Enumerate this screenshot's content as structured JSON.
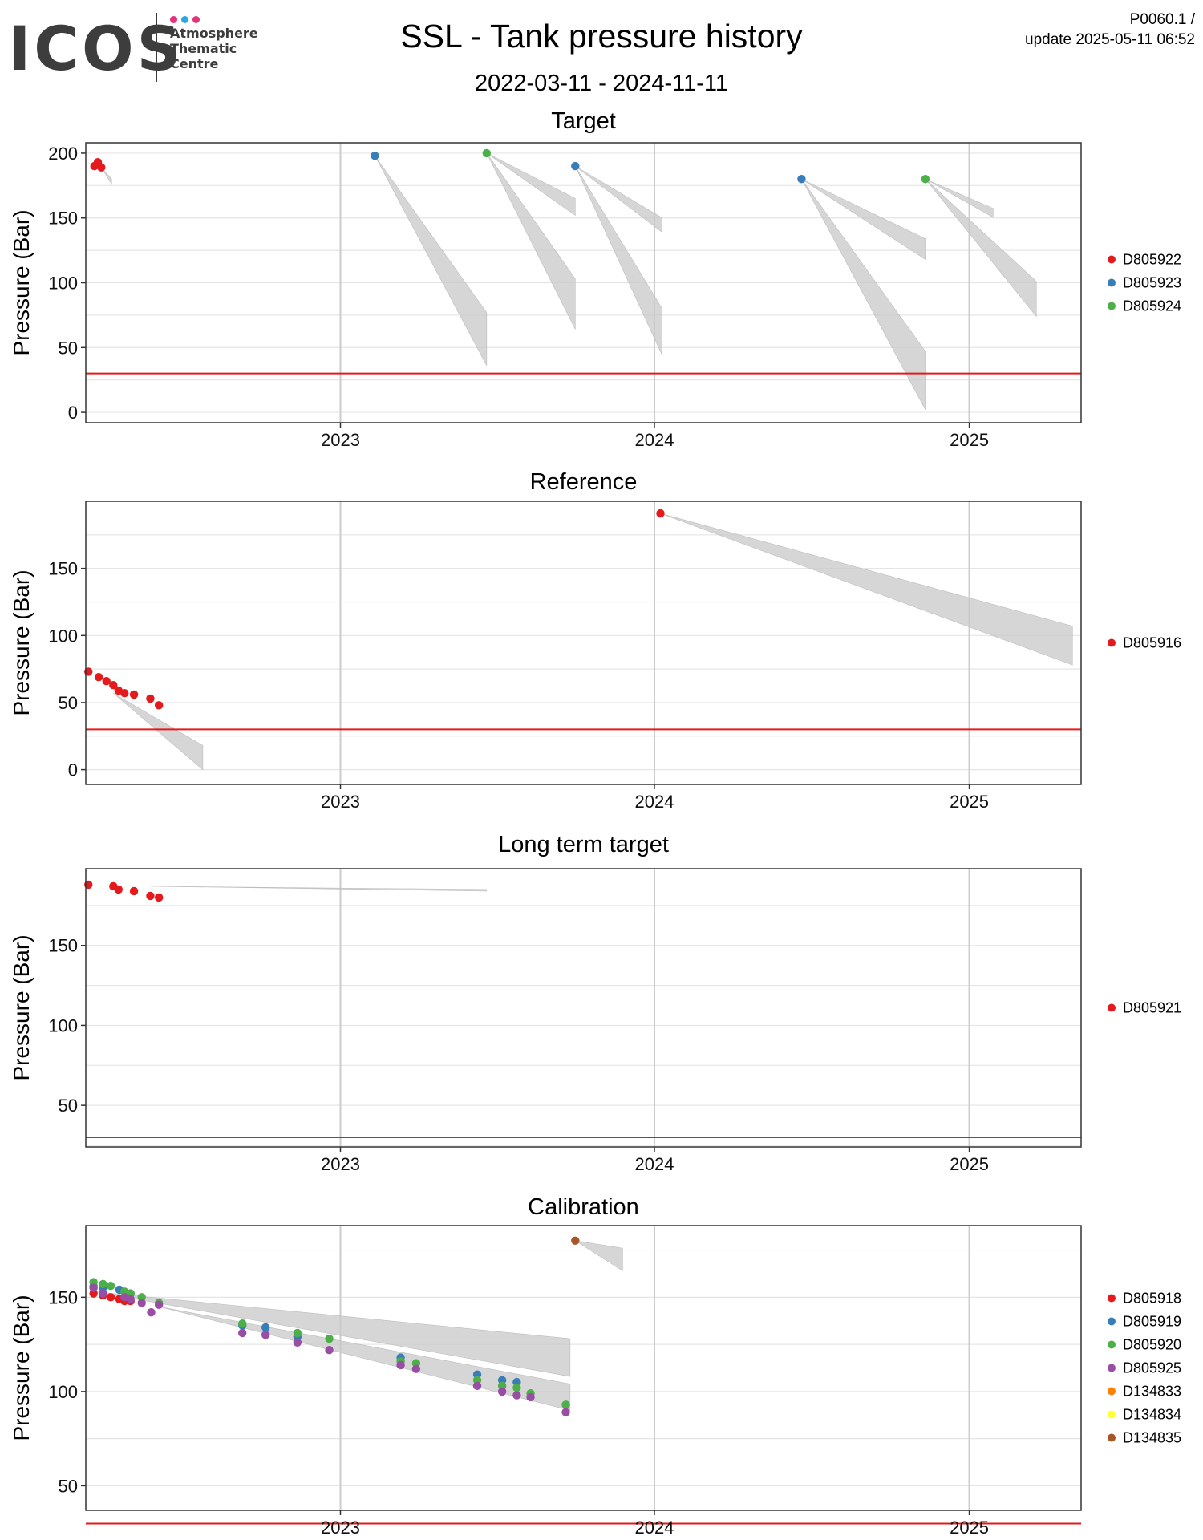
{
  "header": {
    "logo_text": "ICOS",
    "logo_sub_line1": "Atmosphere",
    "logo_sub_line2": "Thematic",
    "logo_sub_line3": "Centre",
    "logo_dot_colors": [
      "#e0357a",
      "#2aa8e0",
      "#e0357a"
    ],
    "title": "SSL - Tank pressure history",
    "date_range": "2022-03-11 - 2024-11-11",
    "doc_id": "P0060.1 /",
    "update": "update  2025-05-11 06:52"
  },
  "colors": {
    "threshold": "#e31a1c",
    "grid": "#e5e5e5",
    "grid_year": "#cccccc",
    "projection_fill": "#c8c8c8"
  },
  "chart_data": [
    {
      "type": "scatter",
      "title": "Target",
      "ylabel": "Pressure (Bar)",
      "xlabel": "",
      "xlim": [
        "2022-03-11",
        "2025-05-11"
      ],
      "ylim": [
        -8,
        208
      ],
      "y_ticks": [
        0,
        50,
        100,
        150,
        200
      ],
      "x_ticks": [
        "2023",
        "2024",
        "2025"
      ],
      "threshold": 30,
      "grid": true,
      "legend_position": "right",
      "series": [
        {
          "name": "D805922",
          "color": "#e41a1c",
          "points": [
            [
              "2022-03-21",
              190
            ],
            [
              "2022-03-25",
              193
            ],
            [
              "2022-03-29",
              189
            ]
          ]
        },
        {
          "name": "D805923",
          "color": "#377eb8",
          "points": [
            [
              "2023-02-10",
              198
            ],
            [
              "2023-10-01",
              190
            ],
            [
              "2024-06-20",
              180
            ]
          ]
        },
        {
          "name": "D805924",
          "color": "#4daf4a",
          "points": [
            [
              "2023-06-20",
              200
            ],
            [
              "2024-11-11",
              180
            ]
          ]
        }
      ],
      "projections": [
        {
          "from": [
            "2022-03-29",
            189
          ],
          "to": "2022-04-10",
          "lo": 176,
          "hi": 180
        },
        {
          "from": [
            "2023-02-10",
            198
          ],
          "to": "2023-06-20",
          "lo": 36,
          "hi": 77
        },
        {
          "from": [
            "2023-06-20",
            200
          ],
          "to": "2023-10-01",
          "lo": 64,
          "hi": 103
        },
        {
          "from": [
            "2023-06-20",
            200
          ],
          "to": "2023-10-01",
          "lo": 152,
          "hi": 165
        },
        {
          "from": [
            "2023-10-01",
            190
          ],
          "to": "2024-01-10",
          "lo": 44,
          "hi": 80
        },
        {
          "from": [
            "2023-10-01",
            190
          ],
          "to": "2024-01-10",
          "lo": 139,
          "hi": 150
        },
        {
          "from": [
            "2024-06-20",
            180
          ],
          "to": "2024-11-11",
          "lo": 2,
          "hi": 47
        },
        {
          "from": [
            "2024-06-20",
            180
          ],
          "to": "2024-11-11",
          "lo": 118,
          "hi": 134
        },
        {
          "from": [
            "2024-11-11",
            180
          ],
          "to": "2025-03-20",
          "lo": 74,
          "hi": 101
        },
        {
          "from": [
            "2024-11-11",
            180
          ],
          "to": "2025-01-30",
          "lo": 150,
          "hi": 157
        }
      ]
    },
    {
      "type": "scatter",
      "title": "Reference",
      "ylabel": "Pressure (Bar)",
      "xlabel": "",
      "xlim": [
        "2022-03-11",
        "2025-05-11"
      ],
      "ylim": [
        -11,
        200
      ],
      "y_ticks": [
        0,
        50,
        100,
        150
      ],
      "x_ticks": [
        "2023",
        "2024",
        "2025"
      ],
      "threshold": 30,
      "grid": true,
      "legend_position": "right",
      "series": [
        {
          "name": "D805916",
          "color": "#e41a1c",
          "points": [
            [
              "2022-03-14",
              73
            ],
            [
              "2022-03-26",
              69
            ],
            [
              "2022-04-04",
              66
            ],
            [
              "2022-04-12",
              63
            ],
            [
              "2022-04-18",
              59
            ],
            [
              "2022-04-25",
              57
            ],
            [
              "2022-05-06",
              56
            ],
            [
              "2022-05-25",
              53
            ],
            [
              "2022-06-04",
              48
            ],
            [
              "2024-01-08",
              191
            ]
          ]
        }
      ],
      "projections": [
        {
          "from": [
            "2022-04-12",
            57
          ],
          "to": "2022-07-25",
          "lo": 0,
          "hi": 18
        },
        {
          "from": [
            "2024-01-08",
            191
          ],
          "to": "2025-05-01",
          "lo": 78,
          "hi": 107
        }
      ]
    },
    {
      "type": "scatter",
      "title": "Long term target",
      "ylabel": "Pressure (Bar)",
      "xlabel": "",
      "xlim": [
        "2022-03-11",
        "2025-05-11"
      ],
      "ylim": [
        24,
        198
      ],
      "y_ticks": [
        50,
        100,
        150
      ],
      "x_ticks": [
        "2023",
        "2024",
        "2025"
      ],
      "threshold": 30,
      "grid": true,
      "legend_position": "right",
      "series": [
        {
          "name": "D805921",
          "color": "#e41a1c",
          "points": [
            [
              "2022-03-14",
              188
            ],
            [
              "2022-04-12",
              187
            ],
            [
              "2022-04-18",
              185
            ],
            [
              "2022-05-06",
              184
            ],
            [
              "2022-05-25",
              181
            ],
            [
              "2022-06-04",
              180
            ]
          ]
        }
      ],
      "projections": [
        {
          "from": [
            "2022-05-25",
            187
          ],
          "to": "2023-06-20",
          "lo": 184,
          "hi": 185
        }
      ]
    },
    {
      "type": "scatter",
      "title": "Calibration",
      "ylabel": "Pressure (Bar)",
      "xlabel": "",
      "xlim": [
        "2022-03-11",
        "2025-05-11"
      ],
      "ylim": [
        37,
        188
      ],
      "y_ticks": [
        50,
        100,
        150
      ],
      "x_ticks": [
        "2023",
        "2024",
        "2025"
      ],
      "threshold": 30,
      "grid": true,
      "legend_position": "right",
      "series": [
        {
          "name": "D805918",
          "color": "#e41a1c",
          "points": [
            [
              "2022-03-20",
              152
            ],
            [
              "2022-03-31",
              151
            ],
            [
              "2022-04-09",
              150
            ],
            [
              "2022-04-19",
              149
            ],
            [
              "2022-04-25",
              148
            ],
            [
              "2022-05-02",
              148
            ]
          ]
        },
        {
          "name": "D805919",
          "color": "#377eb8",
          "points": [
            [
              "2022-03-20",
              156
            ],
            [
              "2022-03-31",
              155
            ],
            [
              "2022-04-19",
              154
            ],
            [
              "2022-05-02",
              152
            ],
            [
              "2022-09-09",
              135
            ],
            [
              "2022-10-06",
              134
            ],
            [
              "2022-11-12",
              129
            ],
            [
              "2023-03-12",
              118
            ],
            [
              "2023-06-09",
              109
            ],
            [
              "2023-07-08",
              106
            ],
            [
              "2023-07-25",
              105
            ]
          ]
        },
        {
          "name": "D805920",
          "color": "#4daf4a",
          "points": [
            [
              "2022-03-20",
              158
            ],
            [
              "2022-03-31",
              157
            ],
            [
              "2022-04-09",
              156
            ],
            [
              "2022-04-25",
              153
            ],
            [
              "2022-05-02",
              152
            ],
            [
              "2022-05-15",
              150
            ],
            [
              "2022-06-04",
              147
            ],
            [
              "2022-09-09",
              136
            ],
            [
              "2022-11-12",
              131
            ],
            [
              "2022-12-19",
              128
            ],
            [
              "2023-03-12",
              116
            ],
            [
              "2023-03-30",
              115
            ],
            [
              "2023-06-09",
              106
            ],
            [
              "2023-07-08",
              103
            ],
            [
              "2023-07-25",
              102
            ],
            [
              "2023-08-10",
              99
            ],
            [
              "2023-09-20",
              93
            ]
          ]
        },
        {
          "name": "D805925",
          "color": "#984ea3",
          "points": [
            [
              "2022-03-20",
              155
            ],
            [
              "2022-03-31",
              152
            ],
            [
              "2022-04-25",
              150
            ],
            [
              "2022-05-02",
              149
            ],
            [
              "2022-05-15",
              147
            ],
            [
              "2022-05-26",
              142
            ],
            [
              "2022-06-04",
              146
            ],
            [
              "2022-09-09",
              131
            ],
            [
              "2022-10-06",
              130
            ],
            [
              "2022-11-12",
              126
            ],
            [
              "2022-12-19",
              122
            ],
            [
              "2023-03-12",
              114
            ],
            [
              "2023-03-30",
              112
            ],
            [
              "2023-06-09",
              103
            ],
            [
              "2023-07-08",
              100
            ],
            [
              "2023-07-25",
              98
            ],
            [
              "2023-08-10",
              97
            ],
            [
              "2023-09-20",
              89
            ]
          ]
        },
        {
          "name": "D134833",
          "color": "#ff7f00",
          "points": []
        },
        {
          "name": "D134834",
          "color": "#ffff33",
          "points": []
        },
        {
          "name": "D134835",
          "color": "#a65628",
          "points": [
            [
              "2023-10-01",
              180
            ]
          ]
        }
      ],
      "projections": [
        {
          "from": [
            "2022-03-20",
            153
          ],
          "to": "2023-09-25",
          "lo": 108,
          "hi": 128
        },
        {
          "from": [
            "2022-06-04",
            145
          ],
          "to": "2023-09-25",
          "lo": 90,
          "hi": 104
        },
        {
          "from": [
            "2023-10-01",
            180
          ],
          "to": "2023-11-25",
          "lo": 164,
          "hi": 176
        }
      ]
    }
  ]
}
